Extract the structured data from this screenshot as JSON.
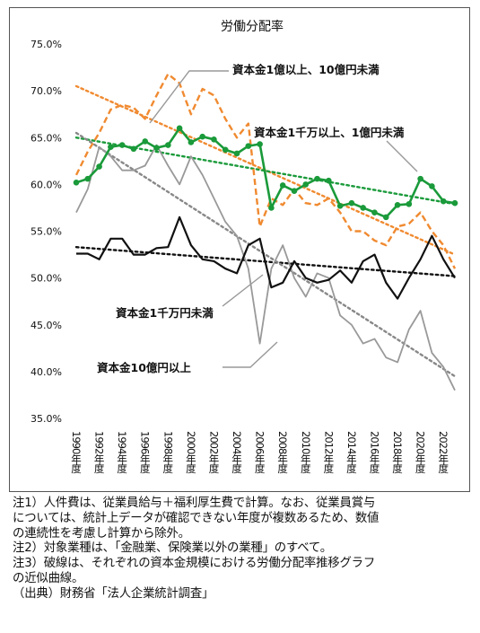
{
  "chart_data": {
    "type": "line",
    "title": "労働分配率",
    "xlabel": "",
    "ylabel": "",
    "ylim": [
      35,
      75
    ],
    "yticks": [
      "35.0%",
      "40.0%",
      "45.0%",
      "50.0%",
      "55.0%",
      "60.0%",
      "65.0%",
      "70.0%",
      "75.0%"
    ],
    "ytick_values": [
      35,
      40,
      45,
      50,
      55,
      60,
      65,
      70,
      75
    ],
    "x": [
      1990,
      1991,
      1992,
      1993,
      1994,
      1995,
      1996,
      1997,
      1998,
      1999,
      2000,
      2001,
      2002,
      2003,
      2004,
      2005,
      2006,
      2007,
      2008,
      2009,
      2010,
      2011,
      2012,
      2013,
      2014,
      2015,
      2016,
      2017,
      2018,
      2019,
      2020,
      2021,
      2022,
      2023
    ],
    "xtick_labels": [
      "1990年度",
      "1992年度",
      "1994年度",
      "1996年度",
      "1998年度",
      "2000年度",
      "2002年度",
      "2004年度",
      "2006年度",
      "2008年度",
      "2010年度",
      "2012年度",
      "2014年度",
      "2016年度",
      "2018年度",
      "2020年度",
      "2022年度"
    ],
    "grid": false,
    "legend": "none (series labeled directly with callouts)",
    "series": [
      {
        "name": "資本金1億以上、10億円未満",
        "color": "#f08a30",
        "style": "dashed",
        "values": [
          61.0,
          63.5,
          65.5,
          68.0,
          68.5,
          68.2,
          67.0,
          69.5,
          71.8,
          70.8,
          67.5,
          70.2,
          69.5,
          67.0,
          65.0,
          66.5,
          55.5,
          58.5,
          57.8,
          59.5,
          58.0,
          57.8,
          58.5,
          57.0,
          55.0,
          55.0,
          54.0,
          53.5,
          55.5,
          55.8,
          57.0,
          55.0,
          53.5,
          51.0
        ]
      },
      {
        "name": "資本金1千万以上、1億円未満",
        "color": "#1a9a3a",
        "style": "solid-markers",
        "values": [
          60.2,
          60.6,
          61.9,
          64.0,
          64.2,
          63.8,
          64.6,
          63.9,
          64.2,
          66.0,
          64.5,
          65.1,
          64.8,
          63.7,
          63.3,
          64.1,
          64.3,
          57.5,
          59.9,
          59.3,
          60.0,
          60.6,
          60.4,
          57.7,
          58.0,
          57.5,
          57.0,
          56.5,
          57.8,
          57.9,
          60.6,
          59.8,
          58.2,
          58.0
        ]
      },
      {
        "name": "資本金1千万円未満",
        "color": "#111111",
        "style": "solid",
        "values": [
          52.6,
          52.6,
          52.0,
          54.2,
          54.2,
          52.5,
          52.5,
          53.2,
          53.3,
          56.5,
          53.5,
          52.0,
          51.8,
          51.0,
          50.5,
          53.5,
          54.2,
          49.0,
          49.5,
          51.8,
          50.0,
          49.5,
          49.8,
          50.8,
          49.5,
          51.8,
          52.5,
          49.5,
          47.8,
          50.0,
          52.0,
          54.5,
          52.0,
          50.0
        ]
      },
      {
        "name": "資本金10億円以上",
        "color": "#999999",
        "style": "solid",
        "values": [
          57.0,
          59.5,
          64.0,
          63.0,
          61.5,
          61.5,
          62.0,
          64.2,
          62.0,
          60.0,
          63.0,
          61.0,
          58.5,
          56.0,
          54.5,
          51.0,
          43.0,
          51.0,
          53.5,
          50.0,
          48.0,
          50.5,
          50.0,
          46.0,
          45.0,
          43.0,
          43.5,
          41.5,
          41.0,
          44.5,
          46.5,
          42.0,
          40.5,
          38.0
        ]
      }
    ],
    "trendlines": [
      {
        "series": "資本金1億以上、10億円未満",
        "color": "#f08a30",
        "start": 70.5,
        "end": 52.5
      },
      {
        "series": "資本金1千万以上、1億円未満",
        "color": "#1a9a3a",
        "start": 65.0,
        "end": 57.9
      },
      {
        "series": "資本金1千万円未満",
        "color": "#111111",
        "start": 53.3,
        "end": 50.2
      },
      {
        "series": "資本金10億円以上",
        "color": "#888888",
        "start": 65.5,
        "end": 39.5
      }
    ],
    "annotations": [
      {
        "text": "資本金1億以上、10億円未満",
        "series": "資本金1億以上、10億円未満"
      },
      {
        "text": "資本金1千万以上、1億円未満",
        "series": "資本金1千万以上、1億円未満"
      },
      {
        "text": "資本金1千万円未満",
        "series": "資本金1千万円未満"
      },
      {
        "text": "資本金10億円以上",
        "series": "資本金10億円以上"
      }
    ]
  },
  "notes": [
    "注1）人件費は、従業員給与＋福利厚生費で計算。なお、従業員賞与",
    "については、統計上データが確認できない年度が複数あるため、数値",
    "の連続性を考慮し計算から除外。",
    "注2）対象業種は、「金融業、保険業以外の業種」のすべて。",
    "注3）破線は、それぞれの資本金規模における労働分配率推移グラフ",
    "の近似曲線。",
    "（出典）財務省「法人企業統計調査」"
  ]
}
